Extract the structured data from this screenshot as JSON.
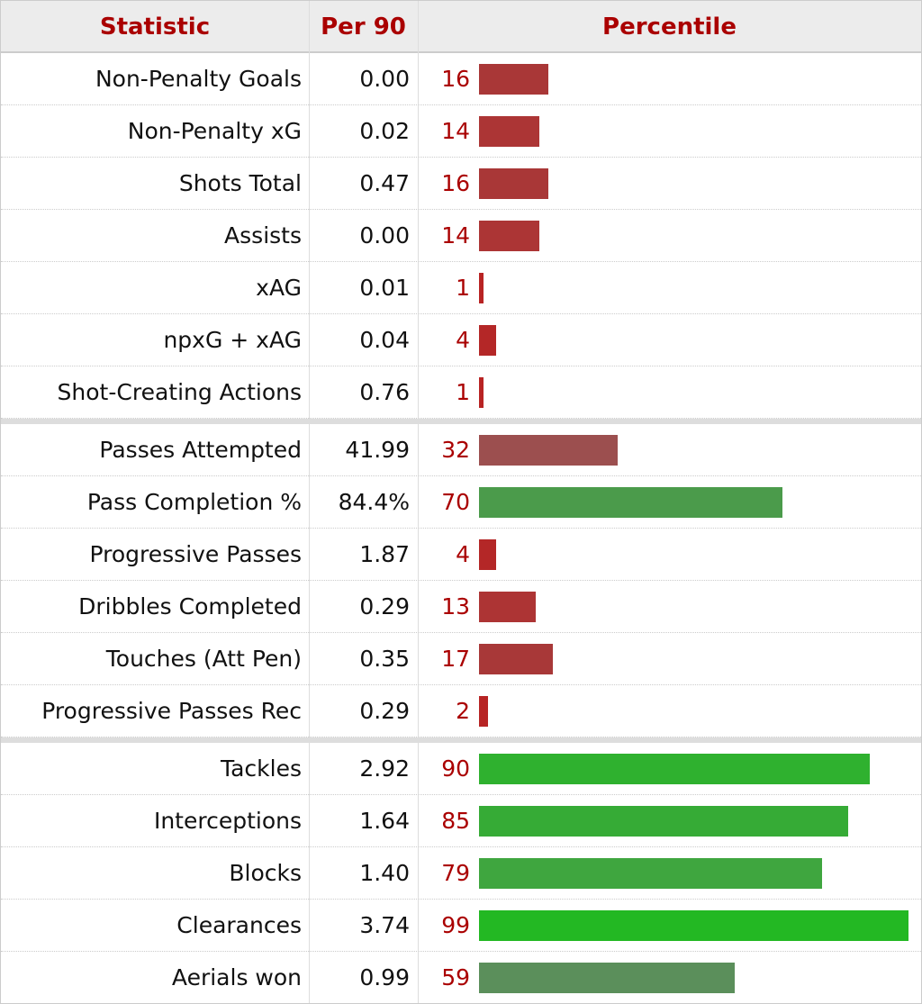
{
  "table": {
    "header": [
      "Statistic",
      "Per 90",
      "Percentile"
    ],
    "groups": [
      [
        {
          "statistic": "Non-Penalty Goals",
          "per90": "0.00",
          "percentile": 16
        },
        {
          "statistic": "Non-Penalty xG",
          "per90": "0.02",
          "percentile": 14
        },
        {
          "statistic": "Shots Total",
          "per90": "0.47",
          "percentile": 16
        },
        {
          "statistic": "Assists",
          "per90": "0.00",
          "percentile": 14
        },
        {
          "statistic": "xAG",
          "per90": "0.01",
          "percentile": 1
        },
        {
          "statistic": "npxG + xAG",
          "per90": "0.04",
          "percentile": 4
        },
        {
          "statistic": "Shot-Creating Actions",
          "per90": "0.76",
          "percentile": 1
        }
      ],
      [
        {
          "statistic": "Passes Attempted",
          "per90": "41.99",
          "percentile": 32
        },
        {
          "statistic": "Pass Completion %",
          "per90": "84.4%",
          "percentile": 70
        },
        {
          "statistic": "Progressive Passes",
          "per90": "1.87",
          "percentile": 4
        },
        {
          "statistic": "Dribbles Completed",
          "per90": "0.29",
          "percentile": 13
        },
        {
          "statistic": "Touches (Att Pen)",
          "per90": "0.35",
          "percentile": 17
        },
        {
          "statistic": "Progressive Passes Rec",
          "per90": "0.29",
          "percentile": 2
        }
      ],
      [
        {
          "statistic": "Tackles",
          "per90": "2.92",
          "percentile": 90
        },
        {
          "statistic": "Interceptions",
          "per90": "1.64",
          "percentile": 85
        },
        {
          "statistic": "Blocks",
          "per90": "1.40",
          "percentile": 79
        },
        {
          "statistic": "Clearances",
          "per90": "3.74",
          "percentile": 99
        },
        {
          "statistic": "Aerials won",
          "per90": "0.99",
          "percentile": 59
        }
      ]
    ]
  }
}
